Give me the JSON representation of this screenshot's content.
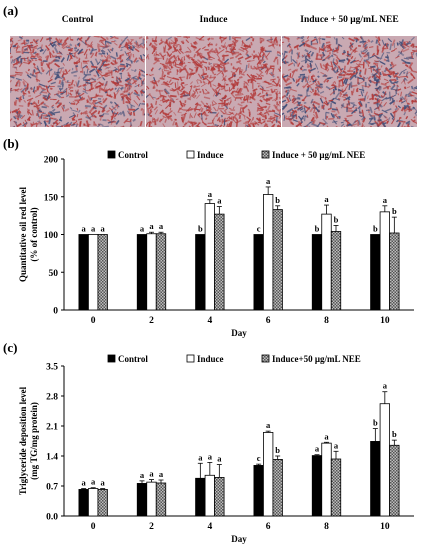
{
  "panel_labels": {
    "a": "(a)",
    "b": "(b)",
    "c": "(c)"
  },
  "image_titles": [
    "Control",
    "Induce",
    "Induce + 50 μg/mL NEE"
  ],
  "image_stain_intensity": [
    0.55,
    1.0,
    0.35
  ],
  "colors": {
    "control": "#000000",
    "induce": "#ffffff",
    "nee_pattern": "#7a7a7a",
    "stain_red": "#b23a3a",
    "stain_blue": "#3f4d77"
  },
  "chart_data": [
    {
      "type": "bar",
      "categories": [
        "0",
        "2",
        "4",
        "6",
        "8",
        "10"
      ],
      "xlabel": "Day",
      "ylabel_lines": [
        "Quantitative oil red level",
        "(% of control)"
      ],
      "ylim": [
        0,
        200
      ],
      "yticks": [
        "0",
        "50",
        "100",
        "150",
        "200"
      ],
      "legend": [
        "Control",
        "Induce",
        "Induce + 50 μg/mL NEE"
      ],
      "series": [
        {
          "name": "Control",
          "values": [
            100,
            100,
            100,
            100,
            100,
            100
          ],
          "errors": [
            0,
            0,
            0,
            0,
            0,
            0
          ],
          "letters": [
            "a",
            "a",
            "b",
            "c",
            "b",
            "b"
          ]
        },
        {
          "name": "Induce",
          "values": [
            100,
            101,
            141,
            153,
            127,
            130
          ],
          "errors": [
            0,
            2,
            5,
            10,
            12,
            8
          ],
          "letters": [
            "a",
            "a",
            "a",
            "a",
            "a",
            "a"
          ]
        },
        {
          "name": "Induce + 50 μg/mL NEE",
          "values": [
            100,
            101,
            127,
            133,
            104,
            102
          ],
          "errors": [
            0,
            2,
            10,
            5,
            8,
            21
          ],
          "letters": [
            "a",
            "a",
            "a",
            "b",
            "b",
            "b"
          ]
        }
      ]
    },
    {
      "type": "bar",
      "categories": [
        "0",
        "2",
        "4",
        "6",
        "8",
        "10"
      ],
      "xlabel": "Day",
      "ylabel_lines": [
        "Triglyceride deposition level",
        "(mg TG/mg protein)"
      ],
      "ylim": [
        0,
        3.5
      ],
      "yticks": [
        "0.0",
        "0.7",
        "1.4",
        "2.1",
        "2.8",
        "3.5"
      ],
      "legend": [
        "Control",
        "Induce",
        "Induce+50 μg/mL NEE"
      ],
      "series": [
        {
          "name": "Control",
          "values": [
            0.62,
            0.76,
            0.88,
            1.18,
            1.41,
            1.74
          ],
          "errors": [
            0.02,
            0.06,
            0.35,
            0.03,
            0.02,
            0.3
          ],
          "letters": [
            "a",
            "a",
            "a",
            "c",
            "a",
            "b"
          ]
        },
        {
          "name": "Induce",
          "values": [
            0.64,
            0.79,
            0.95,
            1.95,
            1.7,
            2.62
          ],
          "errors": [
            0.02,
            0.06,
            0.3,
            0.03,
            0.02,
            0.28
          ],
          "letters": [
            "a",
            "a",
            "a",
            "a",
            "a",
            "a"
          ]
        },
        {
          "name": "Induce+50 μg/mL NEE",
          "values": [
            0.62,
            0.77,
            0.9,
            1.32,
            1.33,
            1.65
          ],
          "errors": [
            0.02,
            0.07,
            0.3,
            0.08,
            0.18,
            0.12
          ],
          "letters": [
            "a",
            "a",
            "a",
            "b",
            "a",
            "b"
          ]
        }
      ]
    }
  ]
}
